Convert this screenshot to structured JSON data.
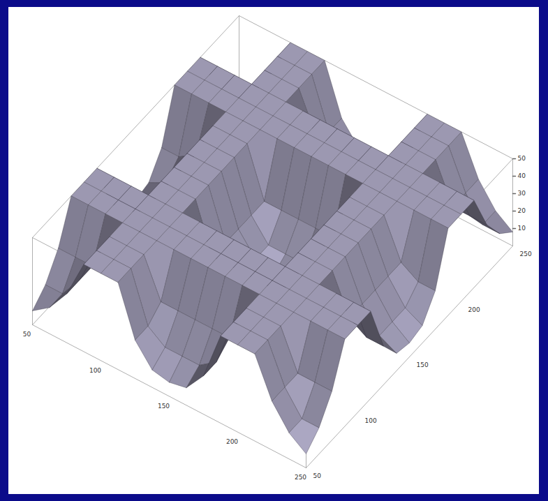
{
  "chart_data": {
    "type": "surface3d",
    "x": [
      50,
      62.5,
      75,
      87.5,
      100,
      112.5,
      125,
      137.5,
      150,
      162.5,
      175,
      187.5,
      200,
      212.5,
      225,
      237.5,
      250
    ],
    "y": [
      50,
      62.5,
      75,
      87.5,
      100,
      112.5,
      125,
      137.5,
      150,
      162.5,
      175,
      187.5,
      200,
      212.5,
      225,
      237.5,
      250
    ],
    "z": [
      [
        8,
        15,
        28,
        50,
        50,
        50,
        22,
        10,
        8,
        10,
        22,
        50,
        50,
        50,
        28,
        15,
        8
      ],
      [
        15,
        15,
        28,
        50,
        50,
        50,
        22,
        15,
        15,
        15,
        22,
        50,
        50,
        50,
        28,
        15,
        15
      ],
      [
        28,
        28,
        28,
        50,
        50,
        50,
        28,
        28,
        28,
        28,
        28,
        50,
        50,
        50,
        28,
        28,
        28
      ],
      [
        50,
        50,
        50,
        50,
        50,
        50,
        50,
        50,
        50,
        50,
        50,
        50,
        50,
        50,
        50,
        50,
        50
      ],
      [
        50,
        50,
        50,
        50,
        50,
        50,
        50,
        50,
        50,
        50,
        50,
        50,
        50,
        50,
        50,
        50,
        50
      ],
      [
        50,
        50,
        50,
        50,
        50,
        50,
        50,
        50,
        50,
        50,
        50,
        50,
        50,
        50,
        50,
        50,
        50
      ],
      [
        22,
        22,
        28,
        50,
        50,
        50,
        22,
        22,
        22,
        22,
        22,
        50,
        50,
        50,
        28,
        22,
        22
      ],
      [
        10,
        15,
        28,
        50,
        50,
        50,
        22,
        10,
        10,
        10,
        22,
        50,
        50,
        50,
        28,
        15,
        10
      ],
      [
        8,
        15,
        28,
        50,
        50,
        50,
        22,
        10,
        5,
        10,
        22,
        50,
        50,
        50,
        28,
        15,
        8
      ],
      [
        10,
        15,
        28,
        50,
        50,
        50,
        22,
        10,
        10,
        10,
        22,
        50,
        50,
        50,
        28,
        15,
        10
      ],
      [
        22,
        22,
        28,
        50,
        50,
        50,
        22,
        22,
        22,
        22,
        22,
        50,
        50,
        50,
        28,
        22,
        22
      ],
      [
        50,
        50,
        50,
        50,
        50,
        50,
        50,
        50,
        50,
        50,
        50,
        50,
        50,
        50,
        50,
        50,
        50
      ],
      [
        50,
        50,
        50,
        50,
        50,
        50,
        50,
        50,
        50,
        50,
        50,
        50,
        50,
        50,
        50,
        50,
        50
      ],
      [
        50,
        50,
        50,
        50,
        50,
        50,
        50,
        50,
        50,
        50,
        50,
        50,
        50,
        50,
        50,
        50,
        50
      ],
      [
        28,
        28,
        28,
        50,
        50,
        50,
        28,
        28,
        28,
        28,
        28,
        50,
        50,
        50,
        28,
        28,
        28
      ],
      [
        15,
        15,
        28,
        50,
        50,
        50,
        22,
        15,
        15,
        15,
        22,
        50,
        50,
        50,
        28,
        15,
        15
      ],
      [
        8,
        15,
        28,
        50,
        50,
        50,
        22,
        10,
        8,
        10,
        22,
        50,
        50,
        50,
        28,
        15,
        8
      ]
    ],
    "xlim": [
      50,
      250
    ],
    "ylim": [
      50,
      250
    ],
    "zlim": [
      0,
      50
    ],
    "xticks": [
      50,
      100,
      150,
      200,
      250
    ],
    "yticks": [
      50,
      100,
      150,
      200,
      250
    ],
    "zticks": [
      10,
      20,
      30,
      40,
      50
    ],
    "color": "#7d7a8e"
  }
}
